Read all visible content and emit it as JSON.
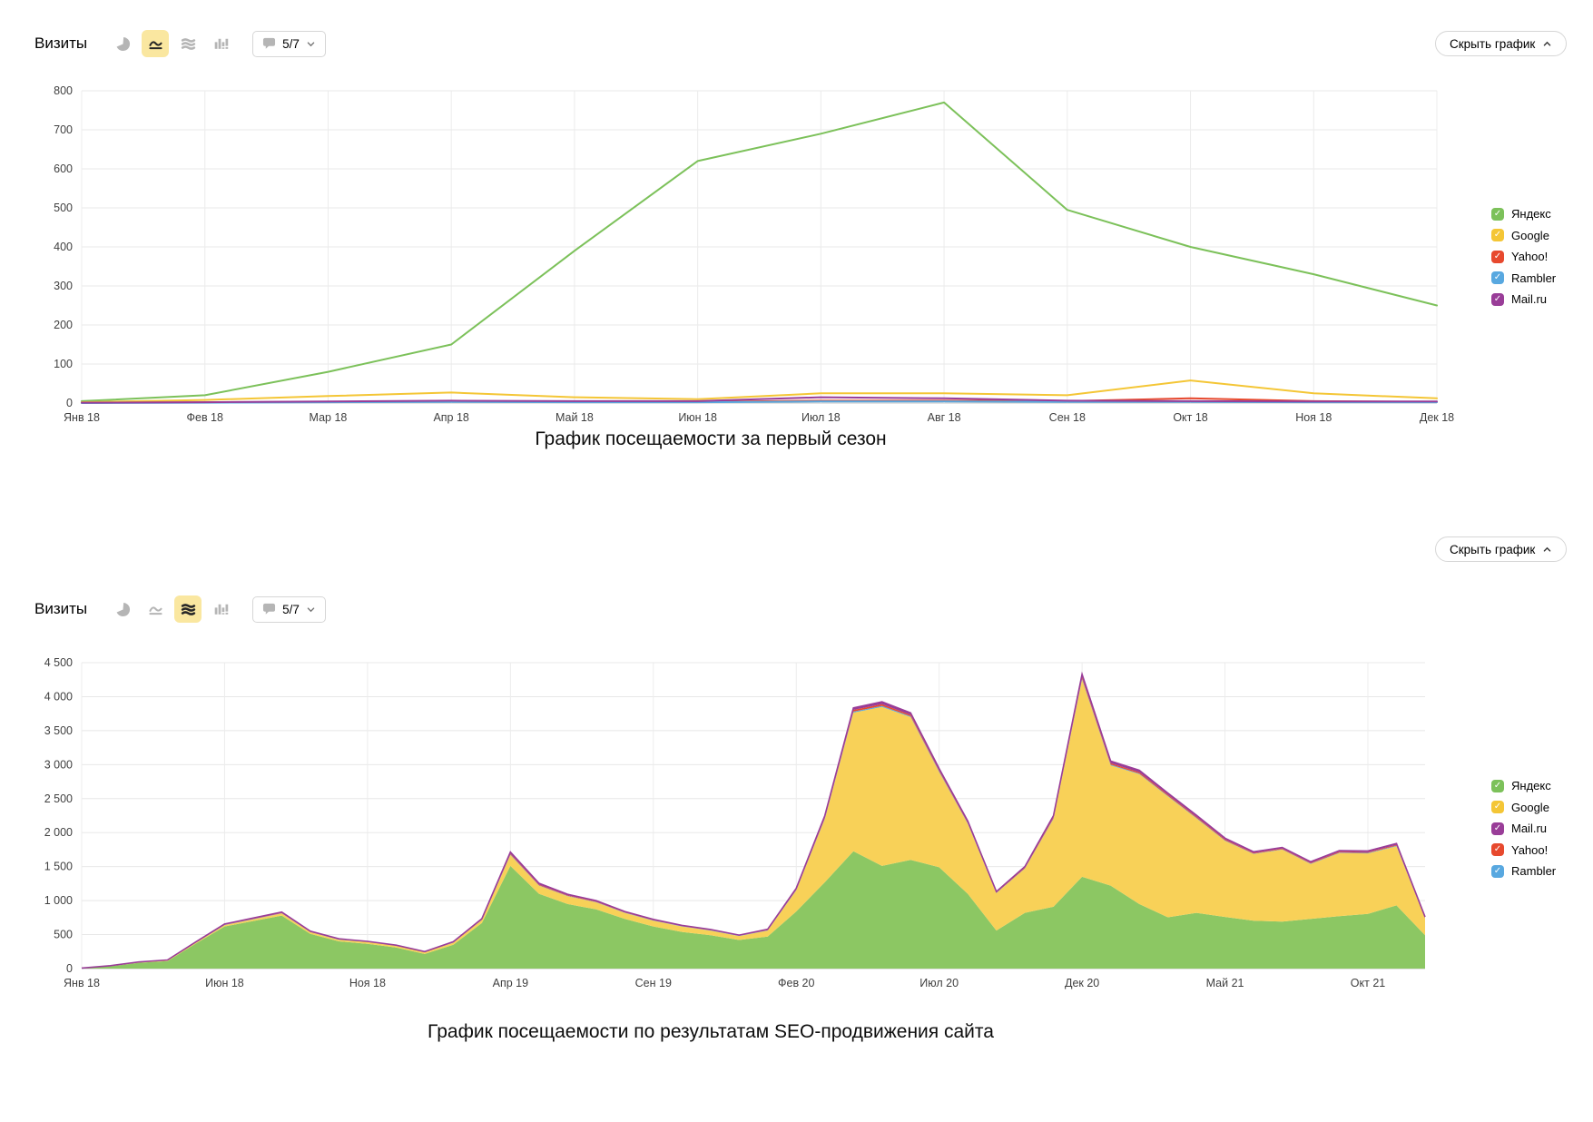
{
  "colors": {
    "yandex": "#7cc15a",
    "google": "#f4c636",
    "yahoo": "#e7492e",
    "rambler": "#58a8e0",
    "mailru": "#993d98",
    "yandex_area_fill": "#8cc763",
    "google_area_fill": "#f8d158",
    "selected_icon_bg": "#fae7a0"
  },
  "blocks": [
    {
      "title": "Визиты",
      "toolbar_icons": [
        {
          "icon": "pie-chart-icon",
          "selected": false
        },
        {
          "icon": "line-chart-icon",
          "selected": true
        },
        {
          "icon": "stacked-area-icon",
          "selected": false
        },
        {
          "icon": "column-chart-icon",
          "selected": false
        }
      ],
      "annotations_selector": "5/7",
      "hide_button_label": "Скрыть график",
      "caption": "График посещаемости за первый сезон",
      "legend": [
        {
          "label": "Яндекс",
          "color": "#7cc15a"
        },
        {
          "label": "Google",
          "color": "#f4c636"
        },
        {
          "label": "Yahoo!",
          "color": "#e7492e"
        },
        {
          "label": "Rambler",
          "color": "#58a8e0"
        },
        {
          "label": "Mail.ru",
          "color": "#993d98"
        }
      ]
    },
    {
      "title": "Визиты",
      "toolbar_icons": [
        {
          "icon": "pie-chart-icon",
          "selected": false
        },
        {
          "icon": "line-chart-icon",
          "selected": false
        },
        {
          "icon": "stacked-area-icon",
          "selected": true
        },
        {
          "icon": "column-chart-icon",
          "selected": false
        }
      ],
      "annotations_selector": "5/7",
      "hide_button_label": "Скрыть график",
      "caption": "График посещаемости по результатам SEO-продвижения сайта",
      "legend": [
        {
          "label": "Яндекс",
          "color": "#7cc15a"
        },
        {
          "label": "Google",
          "color": "#f4c636"
        },
        {
          "label": "Mail.ru",
          "color": "#993d98"
        },
        {
          "label": "Yahoo!",
          "color": "#e7492e"
        },
        {
          "label": "Rambler",
          "color": "#58a8e0"
        }
      ]
    }
  ],
  "chart_data": [
    {
      "type": "line",
      "title": "Визиты",
      "x_labels": [
        "Янв 18",
        "Фев 18",
        "Мар 18",
        "Апр 18",
        "Май 18",
        "Июн 18",
        "Июл 18",
        "Авг 18",
        "Сен 18",
        "Окт 18",
        "Ноя 18",
        "Дек 18"
      ],
      "ylim": [
        0,
        800
      ],
      "ytick_step": 100,
      "grid": true,
      "legend_position": "right",
      "series": [
        {
          "name": "Яндекс",
          "color": "#7cc15a",
          "values": [
            5,
            20,
            80,
            150,
            390,
            620,
            690,
            770,
            495,
            400,
            330,
            250
          ]
        },
        {
          "name": "Google",
          "color": "#f4c636",
          "values": [
            2,
            8,
            18,
            27,
            15,
            10,
            25,
            25,
            20,
            58,
            25,
            12
          ]
        },
        {
          "name": "Yahoo!",
          "color": "#e7492e",
          "values": [
            1,
            2,
            3,
            5,
            3,
            3,
            6,
            6,
            5,
            12,
            5,
            3
          ]
        },
        {
          "name": "Rambler",
          "color": "#58a8e0",
          "values": [
            0,
            1,
            2,
            3,
            2,
            2,
            4,
            4,
            3,
            3,
            2,
            2
          ]
        },
        {
          "name": "Mail.ru",
          "color": "#993d98",
          "values": [
            1,
            2,
            4,
            6,
            5,
            5,
            15,
            12,
            6,
            5,
            4,
            4
          ]
        }
      ]
    },
    {
      "type": "area",
      "stacked": true,
      "title": "Визиты",
      "x_unit": "month",
      "x_range": [
        "Янв 18",
        "Дек 21"
      ],
      "n_points": 48,
      "tick_indices": [
        0,
        5,
        10,
        15,
        20,
        25,
        30,
        35,
        40,
        45
      ],
      "tick_labels": [
        "Янв 18",
        "Июн 18",
        "Ноя 18",
        "Апр 19",
        "Сен 19",
        "Фев 20",
        "Июл 20",
        "Дек 20",
        "Май 21",
        "Окт 21"
      ],
      "ylim": [
        0,
        4500
      ],
      "ytick_step": 500,
      "grid": true,
      "legend_position": "right",
      "stack_order": [
        "Яндекс",
        "Google",
        "Rambler",
        "Yahoo!",
        "Mail.ru"
      ],
      "series": [
        {
          "name": "Яндекс",
          "color": "#7cc15a",
          "fill": "#8cc763",
          "values": [
            5,
            35,
            85,
            110,
            370,
            620,
            700,
            780,
            510,
            400,
            365,
            310,
            215,
            350,
            670,
            1510,
            1100,
            950,
            870,
            730,
            620,
            540,
            490,
            420,
            470,
            840,
            1270,
            1725,
            1510,
            1600,
            1490,
            1100,
            560,
            820,
            910,
            1350,
            1220,
            950,
            755,
            820,
            760,
            705,
            690,
            730,
            770,
            805,
            930,
            490
          ]
        },
        {
          "name": "Google",
          "color": "#f4c636",
          "fill": "#f8d158",
          "values": [
            2,
            5,
            8,
            10,
            15,
            20,
            25,
            30,
            25,
            25,
            25,
            25,
            25,
            30,
            45,
            160,
            120,
            115,
            105,
            90,
            85,
            80,
            70,
            60,
            90,
            310,
            930,
            2040,
            2340,
            2100,
            1400,
            1030,
            550,
            650,
            1290,
            2900,
            1770,
            1910,
            1780,
            1390,
            1120,
            980,
            1060,
            810,
            930,
            890,
            870,
            250
          ]
        },
        {
          "name": "Mail.ru",
          "color": "#993d98",
          "fill": "#993d98",
          "values": [
            1,
            1,
            2,
            3,
            5,
            8,
            10,
            12,
            8,
            6,
            5,
            5,
            5,
            8,
            10,
            25,
            20,
            15,
            12,
            10,
            10,
            8,
            8,
            6,
            8,
            15,
            25,
            30,
            35,
            30,
            25,
            20,
            10,
            15,
            25,
            40,
            30,
            30,
            25,
            25,
            20,
            18,
            15,
            15,
            18,
            18,
            20,
            10
          ]
        },
        {
          "name": "Yahoo!",
          "color": "#e7492e",
          "fill": "#e7492e",
          "values": [
            0,
            1,
            2,
            2,
            3,
            4,
            5,
            6,
            4,
            4,
            3,
            3,
            3,
            4,
            6,
            12,
            9,
            8,
            7,
            6,
            5,
            5,
            4,
            4,
            6,
            10,
            15,
            25,
            25,
            20,
            15,
            12,
            8,
            10,
            15,
            25,
            20,
            18,
            15,
            14,
            12,
            10,
            10,
            10,
            11,
            11,
            12,
            6
          ]
        },
        {
          "name": "Rambler",
          "color": "#58a8e0",
          "fill": "#58a8e0",
          "values": [
            0,
            1,
            1,
            2,
            2,
            3,
            4,
            4,
            3,
            3,
            2,
            2,
            2,
            3,
            4,
            8,
            6,
            5,
            5,
            4,
            4,
            3,
            3,
            3,
            4,
            6,
            10,
            15,
            15,
            12,
            10,
            8,
            5,
            6,
            10,
            15,
            12,
            10,
            8,
            8,
            7,
            6,
            6,
            6,
            7,
            7,
            8,
            4
          ]
        }
      ]
    }
  ]
}
